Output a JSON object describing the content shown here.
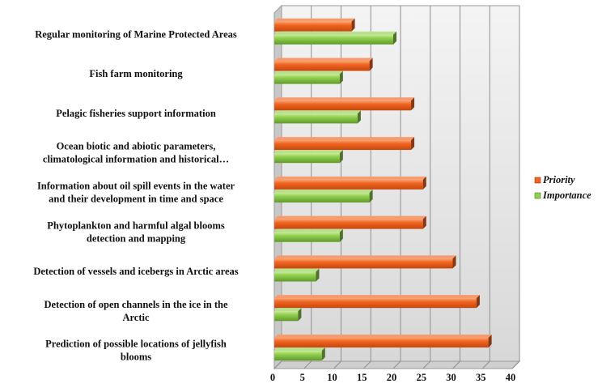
{
  "chart_data": {
    "type": "bar",
    "orientation": "horizontal",
    "style": "3d",
    "categories": [
      [
        "Regular monitoring of Marine Protected Areas"
      ],
      [
        "Fish farm monitoring"
      ],
      [
        "Pelagic fisheries support information"
      ],
      [
        "Ocean biotic and abiotic parameters,",
        "climatological information and historical…"
      ],
      [
        "Information about oil spill events in the water",
        "and their development in time and space"
      ],
      [
        "Phytoplankton and harmful algal blooms",
        "detection and mapping"
      ],
      [
        "Detection of vessels and icebergs in Arctic areas"
      ],
      [
        "Detection of open channels in the ice in the",
        "Arctic"
      ],
      [
        "Prediction of possible locations of jellyfish",
        "blooms"
      ]
    ],
    "series": [
      {
        "name": "Priority",
        "color": "#f26522",
        "values": [
          13,
          16,
          23,
          23,
          25,
          25,
          30,
          34,
          36
        ]
      },
      {
        "name": "Importance",
        "color": "#92d050",
        "values": [
          20,
          11,
          14,
          11,
          16,
          11,
          7,
          4,
          8
        ]
      }
    ],
    "x_ticks": [
      "0",
      "5",
      "10",
      "15",
      "20",
      "25",
      "30",
      "35",
      "40"
    ],
    "xlim": [
      0,
      40
    ],
    "grid": true,
    "legend_position": "right"
  }
}
